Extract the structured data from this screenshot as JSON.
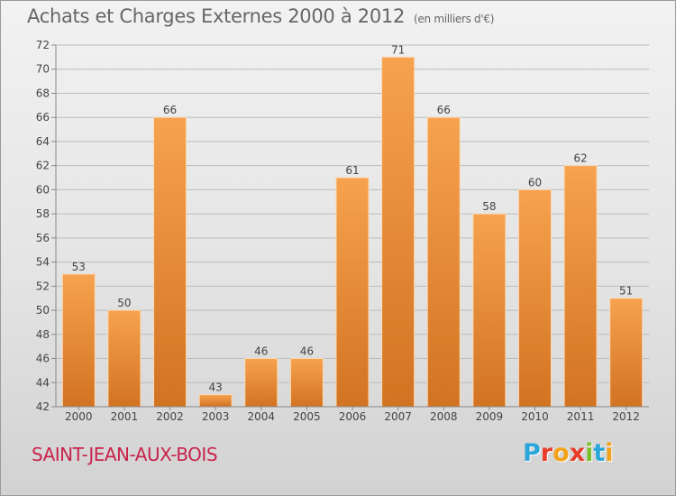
{
  "header": {
    "title": "Achats et Charges Externes 2000 à 2012",
    "subtitle": "(en milliers d'€)"
  },
  "footer": {
    "commune": "SAINT-JEAN-AUX-BOIS",
    "logo_letters": [
      "P",
      "r",
      "o",
      "x",
      "i",
      "t",
      "i"
    ],
    "logo_colors": [
      "#2aa6d8",
      "#e83d2b",
      "#f3a21b",
      "#e83d2b",
      "#7cbf2c",
      "#2aa6d8",
      "#f3a21b"
    ]
  },
  "colors": {
    "bar_top": "#f6a24e",
    "bar_bottom": "#d27322",
    "grid": "#bbbbbb",
    "text": "#444444"
  },
  "chart_data": {
    "type": "bar",
    "title": "Achats et Charges Externes 2000 à 2012",
    "subtitle": "(en milliers d'€)",
    "categories": [
      "2000",
      "2001",
      "2002",
      "2003",
      "2004",
      "2005",
      "2006",
      "2007",
      "2008",
      "2009",
      "2010",
      "2011",
      "2012"
    ],
    "values": [
      53,
      50,
      66,
      43,
      46,
      46,
      61,
      71,
      66,
      58,
      60,
      62,
      51
    ],
    "ylim": [
      42,
      72
    ],
    "yticks": [
      42,
      44,
      46,
      48,
      50,
      52,
      54,
      56,
      58,
      60,
      62,
      64,
      66,
      68,
      70,
      72
    ],
    "grid": true,
    "data_labels": true
  }
}
